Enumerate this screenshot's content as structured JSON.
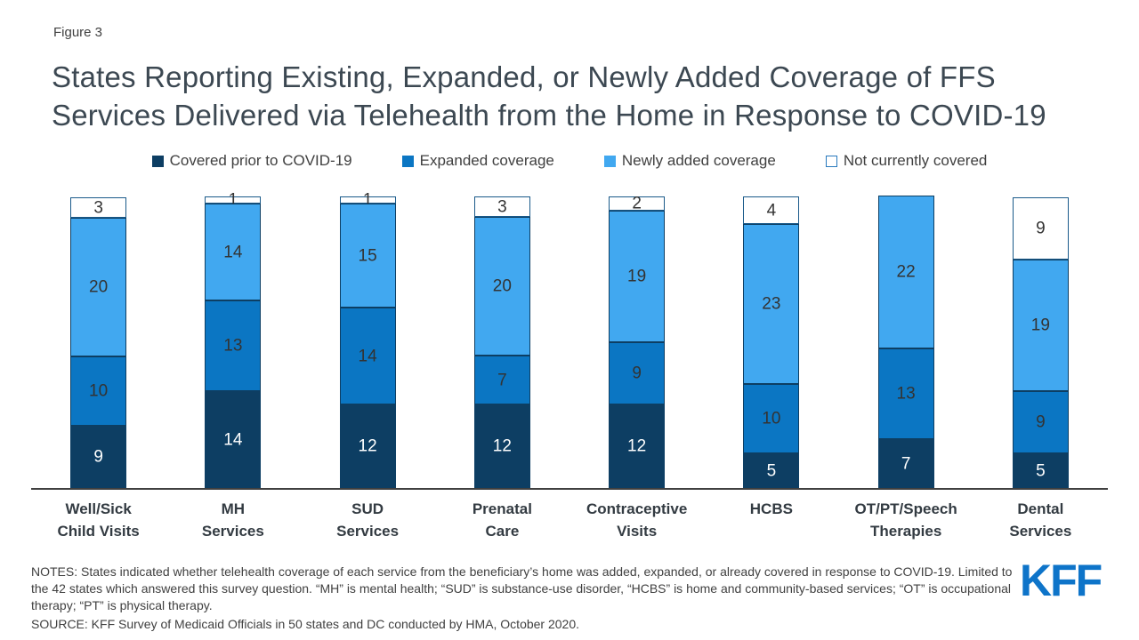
{
  "figure_label": "Figure 3",
  "title": "States Reporting Existing, Expanded, or Newly Added Coverage of FFS Services Delivered via Telehealth from the Home in Response to COVID-19",
  "chart_data": {
    "type": "bar",
    "stacked": true,
    "categories": [
      "Well/Sick\nChild Visits",
      "MH\nServices",
      "SUD\nServices",
      "Prenatal\nCare",
      "Contraceptive\nVisits",
      "HCBS",
      "OT/PT/Speech\nTherapies",
      "Dental\nServices"
    ],
    "series": [
      {
        "name": "Covered prior to COVID-19",
        "color": "#0d3e63",
        "border_color": "#0d3e63",
        "label_color": "#ffffff",
        "values": [
          9,
          14,
          12,
          12,
          12,
          5,
          7,
          5
        ]
      },
      {
        "name": "Expanded coverage",
        "color": "#0b76c3",
        "border_color": "#0d3e63",
        "label_color": "#333333",
        "values": [
          10,
          13,
          14,
          7,
          9,
          10,
          13,
          9
        ]
      },
      {
        "name": "Newly added coverage",
        "color": "#41a8f0",
        "border_color": "#0d3e63",
        "label_color": "#333333",
        "values": [
          20,
          14,
          15,
          20,
          19,
          23,
          22,
          19
        ]
      },
      {
        "name": "Not currently covered",
        "color": "#ffffff",
        "border_color": "#1a5a8a",
        "label_color": "#333333",
        "values": [
          3,
          1,
          1,
          3,
          2,
          4,
          0,
          9
        ]
      }
    ],
    "ymax": 42,
    "legend_position": "top",
    "grid": false,
    "axis_line_color": "#404040"
  },
  "notes": "NOTES: States indicated whether telehealth coverage of each service from the beneficiary’s home was added, expanded, or already covered in response to COVID-19. Limited to the 42 states which answered this survey question. “MH” is mental health; “SUD” is substance-use disorder, “HCBS” is home and community-based services; “OT” is occupational therapy; “PT” is physical therapy.",
  "source": "SOURCE: KFF Survey  of Medicaid Officials in 50 states  and DC conducted  by HMA,  October 2020.",
  "logo_text": "KFF",
  "logo_color": "#0e74c9"
}
